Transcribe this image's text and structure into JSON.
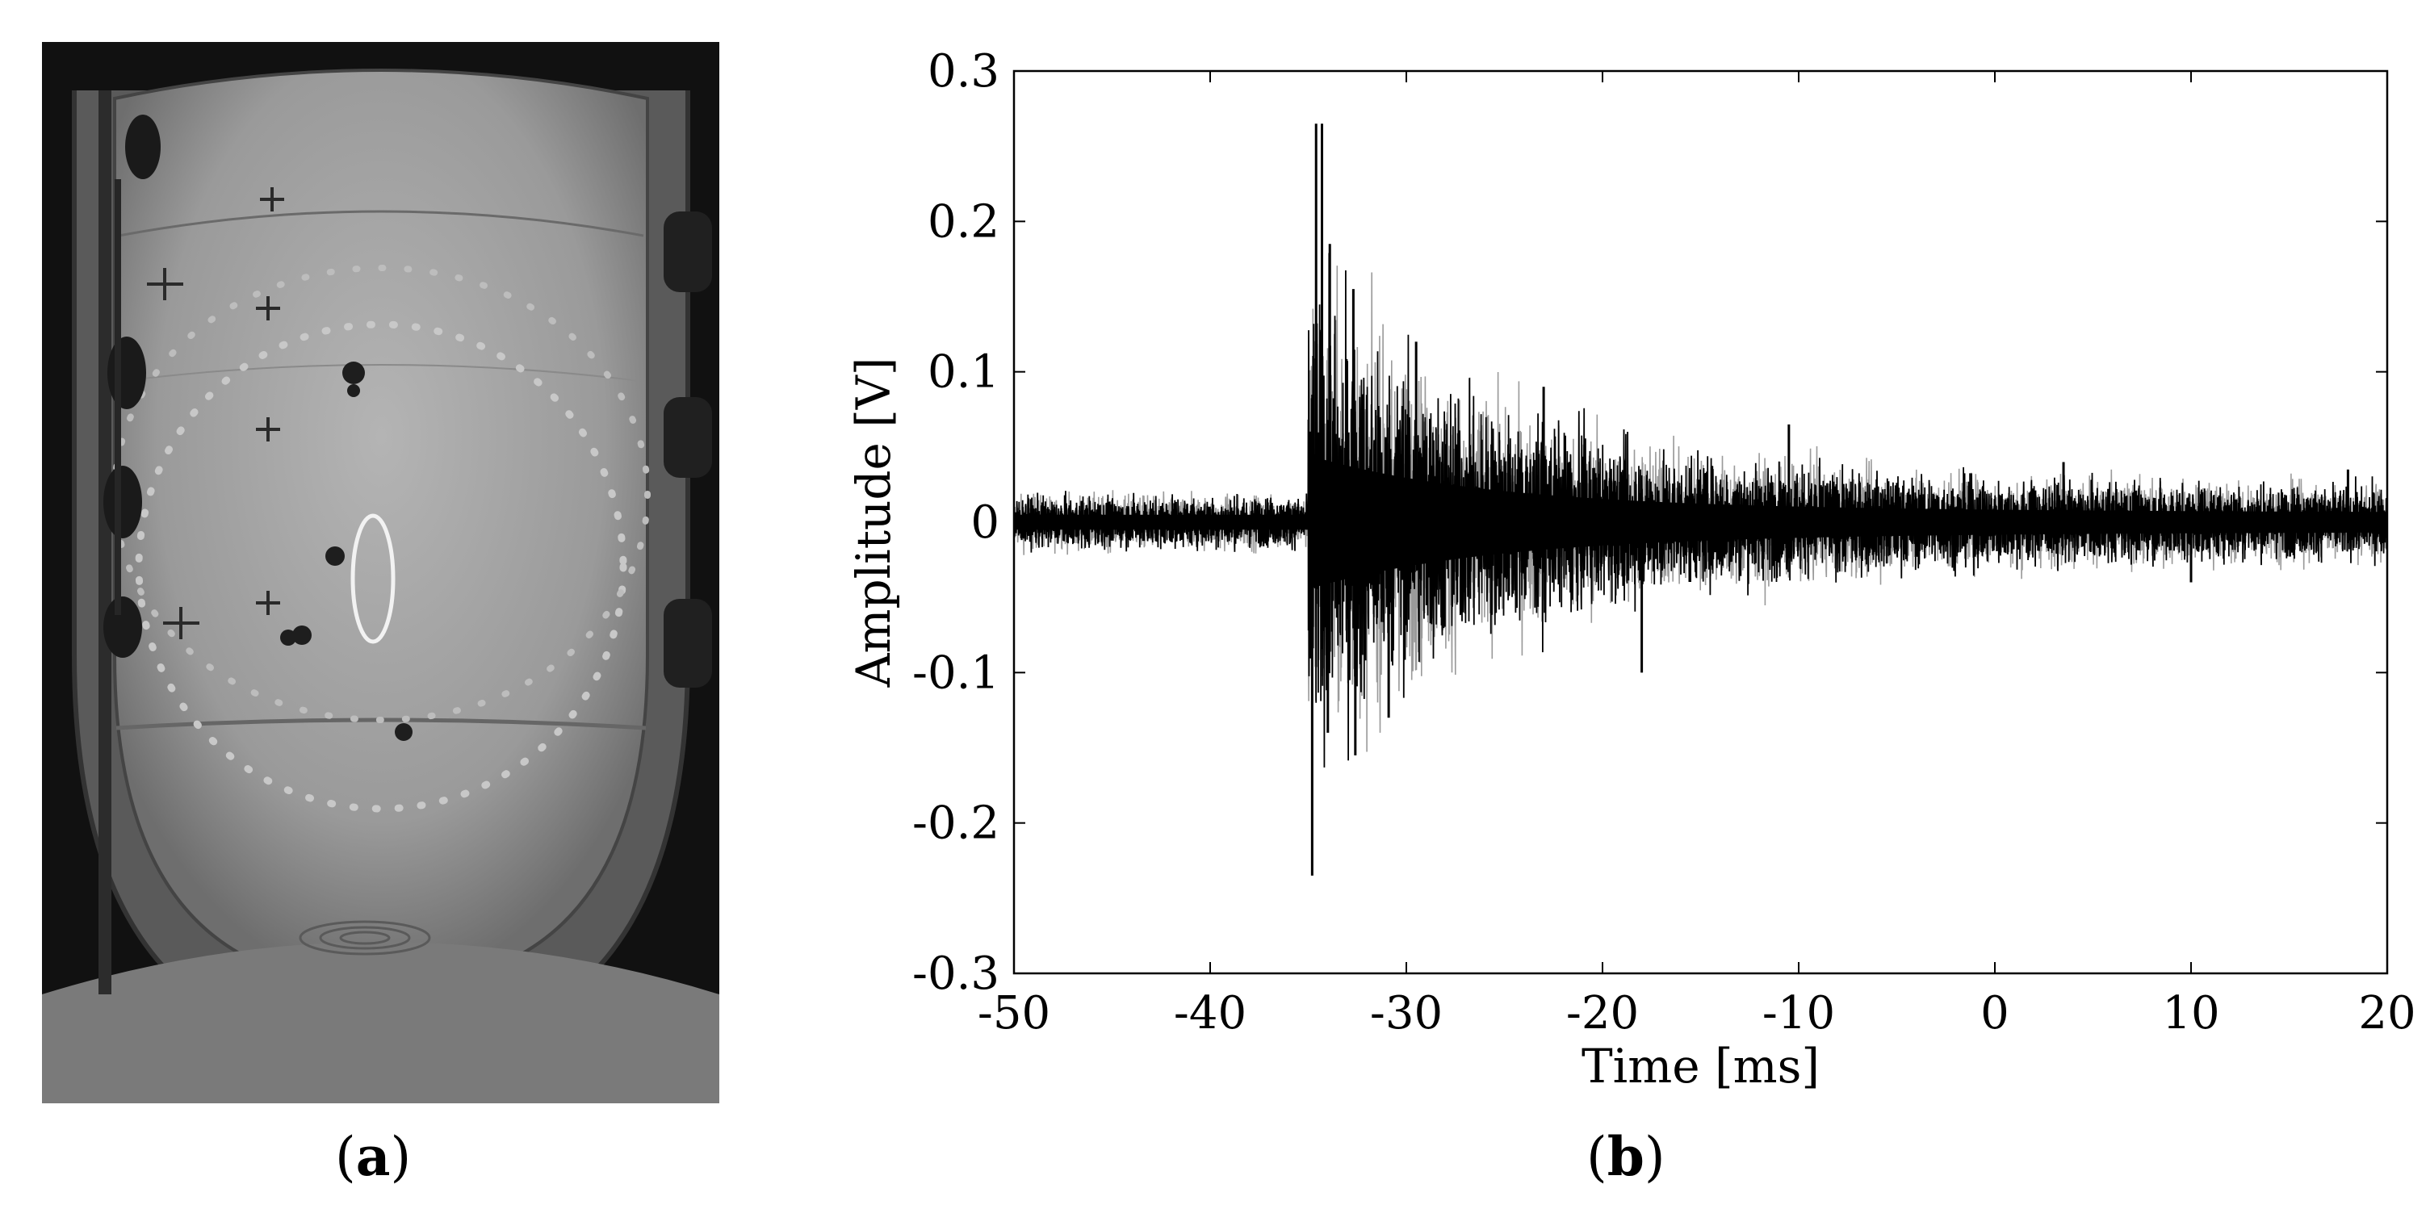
{
  "captions": {
    "a": {
      "open": "(",
      "label": "a",
      "close": ")"
    },
    "b": {
      "open": "(",
      "label": "b",
      "close": ")"
    }
  },
  "colors": {
    "signal": "#000000",
    "signal_secondary": "#9a9a9a",
    "photo_background": "#111111",
    "photo_tank": "#9d9d9d",
    "marker_ellipse": "#f2f2f2"
  },
  "chart_data": {
    "type": "line",
    "xlabel": "Time [ms]",
    "ylabel": "Amplitude [V]",
    "xlim": [
      -50,
      20
    ],
    "ylim": [
      -0.3,
      0.3
    ],
    "xticks": [
      -50,
      -40,
      -30,
      -20,
      -10,
      0,
      10,
      20
    ],
    "xtick_labels": [
      "-50",
      "-40",
      "-30",
      "-20",
      "-10",
      "0",
      "10",
      "20"
    ],
    "yticks": [
      -0.3,
      -0.2,
      -0.1,
      0,
      0.1,
      0.2,
      0.3
    ],
    "ytick_labels": [
      "-0.3",
      "-0.2",
      "-0.1",
      "0",
      "0.1",
      "0.2",
      "0.3"
    ],
    "grid": false,
    "legend": "none",
    "burst_onset_ms": -35,
    "noise_amplitude_v": 0.02,
    "peaks": [
      {
        "x": -34.6,
        "y": 0.265
      },
      {
        "x": -34.3,
        "y": 0.265
      },
      {
        "x": -34.8,
        "y": -0.235
      },
      {
        "x": -33.9,
        "y": 0.185
      },
      {
        "x": -32.7,
        "y": 0.155
      },
      {
        "x": -32.6,
        "y": -0.155
      },
      {
        "x": -34.0,
        "y": -0.14
      },
      {
        "x": -30.9,
        "y": -0.13
      },
      {
        "x": -29.5,
        "y": 0.12
      },
      {
        "x": -23.0,
        "y": 0.09
      },
      {
        "x": -18.0,
        "y": -0.1
      },
      {
        "x": -10.5,
        "y": 0.065
      },
      {
        "x": 3.5,
        "y": 0.04
      },
      {
        "x": 10.0,
        "y": -0.04
      },
      {
        "x": 18.0,
        "y": 0.035
      }
    ]
  }
}
